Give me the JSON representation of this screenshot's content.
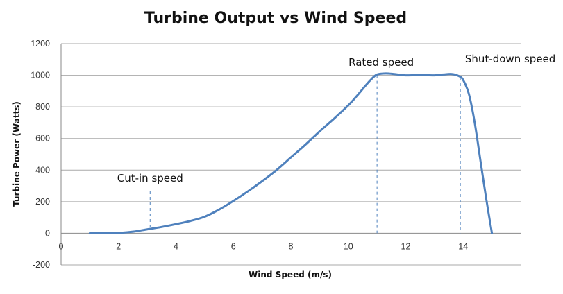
{
  "chart_data": {
    "type": "line",
    "title": "Turbine Output vs Wind Speed",
    "xlabel": "Wind Speed (m/s)",
    "ylabel": "Turbine Power (Watts)",
    "xlim": [
      0,
      16
    ],
    "ylim": [
      -200,
      1200
    ],
    "x_ticks": [
      0,
      2,
      4,
      6,
      8,
      10,
      12,
      14
    ],
    "y_ticks": [
      -200,
      0,
      200,
      400,
      600,
      800,
      1000,
      1200
    ],
    "grid": true,
    "legend": "none",
    "series": [
      {
        "color": "#4f81bd",
        "x": [
          1.0,
          1.5,
          2.0,
          2.5,
          3.0,
          3.5,
          4.0,
          4.5,
          5.0,
          5.5,
          6.0,
          6.5,
          7.0,
          7.5,
          8.0,
          8.5,
          9.0,
          9.5,
          10.0,
          10.3,
          10.6,
          10.8,
          11.0,
          11.3,
          11.6,
          12.0,
          12.5,
          13.0,
          13.3,
          13.6,
          13.85,
          14.0,
          14.2,
          14.4,
          14.6,
          14.8,
          15.0
        ],
        "y": [
          0,
          0,
          2,
          10,
          25,
          40,
          58,
          78,
          105,
          150,
          205,
          265,
          330,
          400,
          480,
          560,
          645,
          725,
          810,
          870,
          935,
          975,
          1005,
          1012,
          1008,
          1000,
          1002,
          1000,
          1005,
          1008,
          995,
          970,
          880,
          700,
          460,
          220,
          0
        ]
      }
    ],
    "annotations": [
      {
        "text": "Cut-in speed",
        "x": 3.1,
        "y_top": 265,
        "y_bottom": 20
      },
      {
        "text": "Rated speed",
        "x": 11.0,
        "y_top": 1000,
        "y_bottom": 0
      },
      {
        "text": "Shut-down speed",
        "x": 13.9,
        "y_top": 985,
        "y_bottom": 0
      }
    ],
    "colors": {
      "series": "#4f81bd",
      "annotation_line": "#4f81bd",
      "grid": "#a9a9a9"
    }
  }
}
